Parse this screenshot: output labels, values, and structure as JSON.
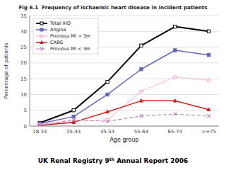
{
  "chart_data": {
    "type": "line",
    "title": "Fig 6.1  Frequency of ischaemic heart disease in incident patients",
    "xlabel": "Age group",
    "ylabel": "Percentage of patients",
    "annotations": [
      "UK Renal Registry 9",
      "th",
      " Annual Report 2006"
    ],
    "categories": [
      "18-34",
      "35-44",
      "45-54",
      "55-64",
      "65-74",
      ">=75"
    ],
    "ylim": [
      0,
      35
    ],
    "yticks": [
      0,
      5,
      10,
      15,
      20,
      25,
      30,
      35
    ],
    "grid": true,
    "legend": "upper left",
    "series": [
      {
        "name": "Total IHD",
        "color": "#000000",
        "marker": "square-open",
        "line_style": "solid",
        "values": [
          1.0,
          5.0,
          14.0,
          25.5,
          31.5,
          30.0
        ]
      },
      {
        "name": "Angina",
        "color": "#6666bb",
        "marker": "square",
        "line_style": "solid",
        "values": [
          0.8,
          3.0,
          10.0,
          18.0,
          24.0,
          22.5
        ]
      },
      {
        "name": "Previous MI > 3m",
        "color": "#ff88cc",
        "marker": "circle-open",
        "line_style": "dotted",
        "values": [
          0.5,
          1.5,
          2.0,
          11.0,
          15.5,
          14.5
        ]
      },
      {
        "name": "CABG",
        "color": "#cc2222",
        "marker": "triangle",
        "line_style": "solid",
        "values": [
          0.2,
          1.2,
          4.5,
          8.0,
          8.0,
          5.2
        ]
      },
      {
        "name": "Previous MI < 3m",
        "color": "#bb88bb",
        "marker": "x",
        "line_style": "dashed",
        "values": [
          0.3,
          2.0,
          1.5,
          3.2,
          3.8,
          3.2
        ]
      }
    ]
  }
}
